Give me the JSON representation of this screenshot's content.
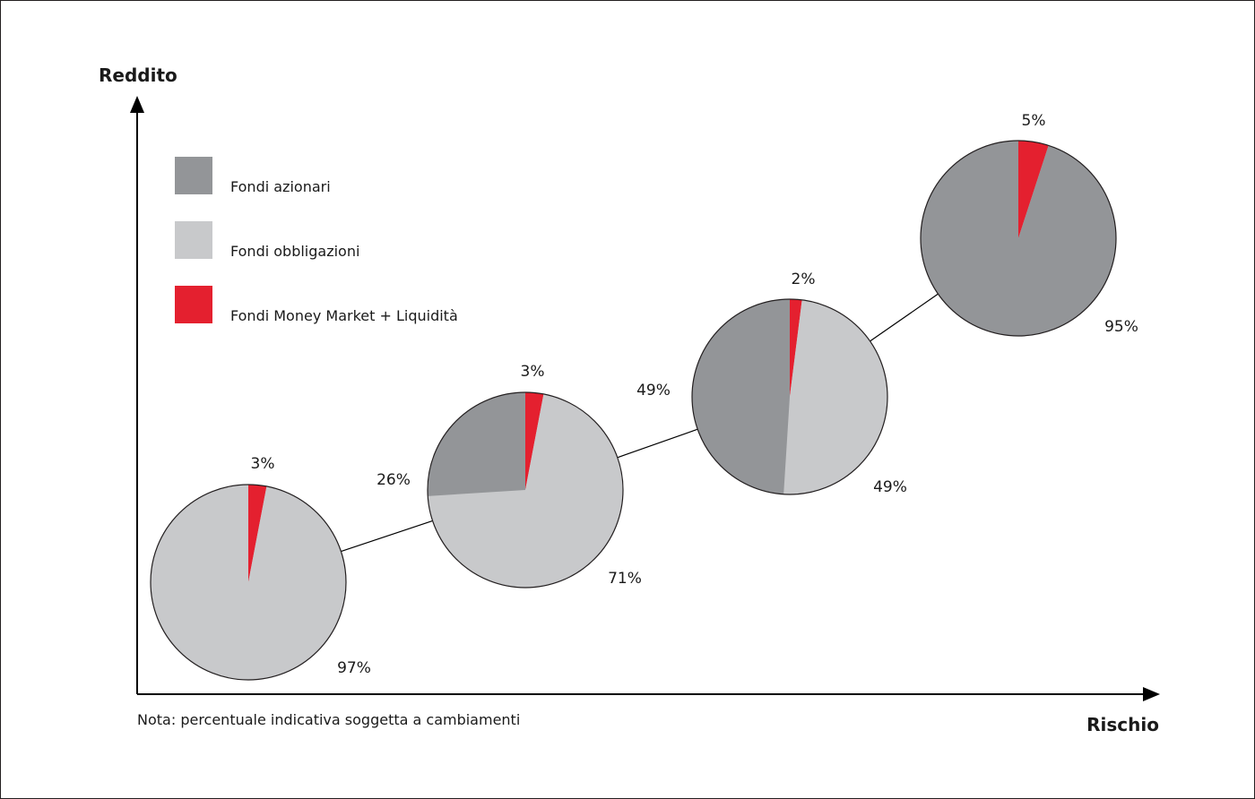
{
  "colors": {
    "equity": "#939598",
    "bond": "#c8c9cb",
    "money": "#e4202f",
    "axis": "#000000",
    "outline": "#231f20"
  },
  "chart_data": {
    "type": "pie",
    "ylabel": "Reddito",
    "xlabel": "Rischio",
    "note": "Nota: percentuale indicativa soggetta a cambiamenti",
    "legend": {
      "placement": "top-left",
      "entries": [
        {
          "key": "equity",
          "label": "Fondi azionari"
        },
        {
          "key": "bond",
          "label": "Fondi obbligazioni"
        },
        {
          "key": "money",
          "label": "Fondi Money Market + Liquidità"
        }
      ]
    },
    "pies": [
      {
        "money": 3,
        "equity": 0,
        "bond": 97,
        "labels": {
          "money": "3%",
          "bond": "97%"
        }
      },
      {
        "money": 3,
        "equity": 26,
        "bond": 71,
        "labels": {
          "money": "3%",
          "equity": "26%",
          "bond": "71%"
        }
      },
      {
        "money": 2,
        "equity": 49,
        "bond": 49,
        "labels": {
          "money": "2%",
          "equity": "49%",
          "bond": "49%"
        }
      },
      {
        "money": 5,
        "equity": 95,
        "bond": 0,
        "labels": {
          "money": "5%",
          "equity": "95%"
        }
      }
    ]
  }
}
